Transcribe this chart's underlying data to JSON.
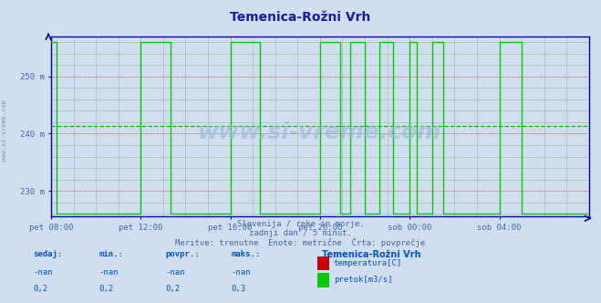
{
  "title": "Temenica-Rožni Vrh",
  "title_color": "#1a1aaa",
  "bg_color": "#d0dff0",
  "plot_bg_color": "#d0dff0",
  "watermark": "www.si-vreme.com",
  "subtitle_lines": [
    "Slovenija / reke in morje.",
    "zadnji dan / 5 minut.",
    "Meritve: trenutne  Enote: metrične  Črta: povprečje"
  ],
  "tick_color": "#4466aa",
  "grid_color_major": "#dd8888",
  "grid_color_minor": "#99bb99",
  "axis_color": "#0000aa",
  "xtick_labels": [
    "pet 08:00",
    "pet 12:00",
    "pet 16:00",
    "pet 20:00",
    "sob 00:00",
    "sob 04:00"
  ],
  "xtick_positions": [
    0,
    48,
    96,
    144,
    192,
    240
  ],
  "ytick_labels": [
    "230 m",
    "240 m",
    "250 m"
  ],
  "ytick_positions": [
    230,
    240,
    250
  ],
  "ylim": [
    225.5,
    257
  ],
  "xlim": [
    0,
    288
  ],
  "avg_line_y": 241.4,
  "avg_line_color": "#00bb00",
  "flow_color": "#00cc00",
  "temp_color": "#cc0000",
  "legend_title": "Temenica-Rožni Vrh",
  "legend_items": [
    {
      "label": "temperatura[C]",
      "color": "#cc0000"
    },
    {
      "label": "pretok[m3/s]",
      "color": "#00cc00"
    }
  ],
  "table_headers": [
    "sedaj:",
    "min.:",
    "povpr.:",
    "maks.:"
  ],
  "table_row1": [
    "-nan",
    "-nan",
    "-nan",
    "-nan"
  ],
  "table_row2": [
    "0,2",
    "0,2",
    "0,2",
    "0,3"
  ],
  "table_color": "#0055cc",
  "n_points": 288,
  "flow_base": 226,
  "flow_high": 256,
  "flow_segments": [
    {
      "start": 0,
      "end": 3,
      "val": 256
    },
    {
      "start": 3,
      "end": 48,
      "val": 226
    },
    {
      "start": 48,
      "end": 64,
      "val": 256
    },
    {
      "start": 64,
      "end": 96,
      "val": 226
    },
    {
      "start": 96,
      "end": 112,
      "val": 256
    },
    {
      "start": 112,
      "end": 144,
      "val": 226
    },
    {
      "start": 144,
      "end": 155,
      "val": 256
    },
    {
      "start": 155,
      "end": 160,
      "val": 226
    },
    {
      "start": 160,
      "end": 168,
      "val": 256
    },
    {
      "start": 168,
      "end": 176,
      "val": 226
    },
    {
      "start": 176,
      "end": 183,
      "val": 256
    },
    {
      "start": 183,
      "end": 192,
      "val": 226
    },
    {
      "start": 192,
      "end": 196,
      "val": 256
    },
    {
      "start": 196,
      "end": 204,
      "val": 226
    },
    {
      "start": 204,
      "end": 210,
      "val": 256
    },
    {
      "start": 210,
      "end": 240,
      "val": 226
    },
    {
      "start": 240,
      "end": 252,
      "val": 256
    },
    {
      "start": 252,
      "end": 288,
      "val": 226
    }
  ]
}
